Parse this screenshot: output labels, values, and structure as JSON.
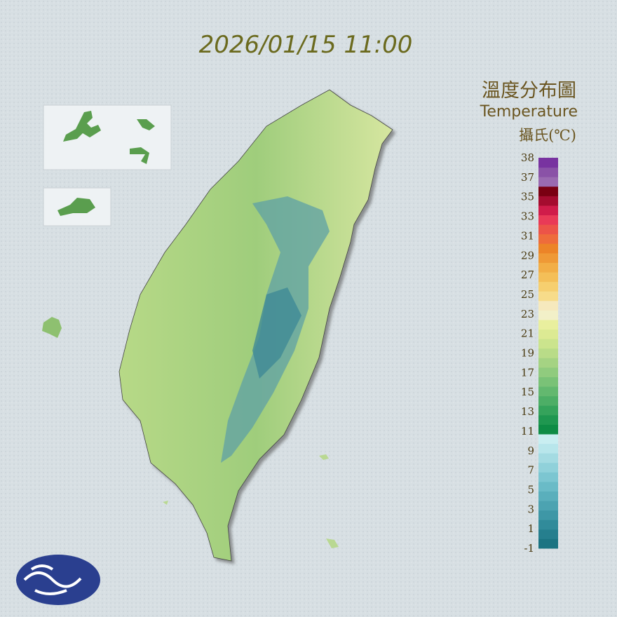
{
  "header": {
    "timestamp": "2026/01/15 11:00"
  },
  "legend": {
    "title": "溫度分布圖",
    "subtitle": "Temperature",
    "unit": "攝氏(℃)",
    "labels": [
      -1,
      1,
      3,
      5,
      7,
      9,
      11,
      13,
      15,
      17,
      19,
      21,
      23,
      25,
      27,
      29,
      31,
      33,
      35,
      37,
      38
    ],
    "colors": [
      "#1b7482",
      "#267f8e",
      "#318b9a",
      "#3e97a6",
      "#4ca3b1",
      "#5aafbc",
      "#6abbc7",
      "#7cc6d1",
      "#90d1da",
      "#a4dbe2",
      "#b8e6eb",
      "#c9eef1",
      "#0e8c45",
      "#1f9750",
      "#35a35b",
      "#4dae66",
      "#63b86f",
      "#7ac277",
      "#90cb7e",
      "#a5d383",
      "#b9dc88",
      "#cbe48d",
      "#dcea93",
      "#e9ef9e",
      "#f2f0c8",
      "#f6e9bd",
      "#f7dc8a",
      "#f6cf6f",
      "#f4bf58",
      "#f2ae46",
      "#ef9936",
      "#ec8428",
      "#ee6c3b",
      "#ec5448",
      "#e93a57",
      "#d01c4a",
      "#a50c2f",
      "#7a0012",
      "#9a6ab1",
      "#8a52a7",
      "#7833a0"
    ]
  }
}
